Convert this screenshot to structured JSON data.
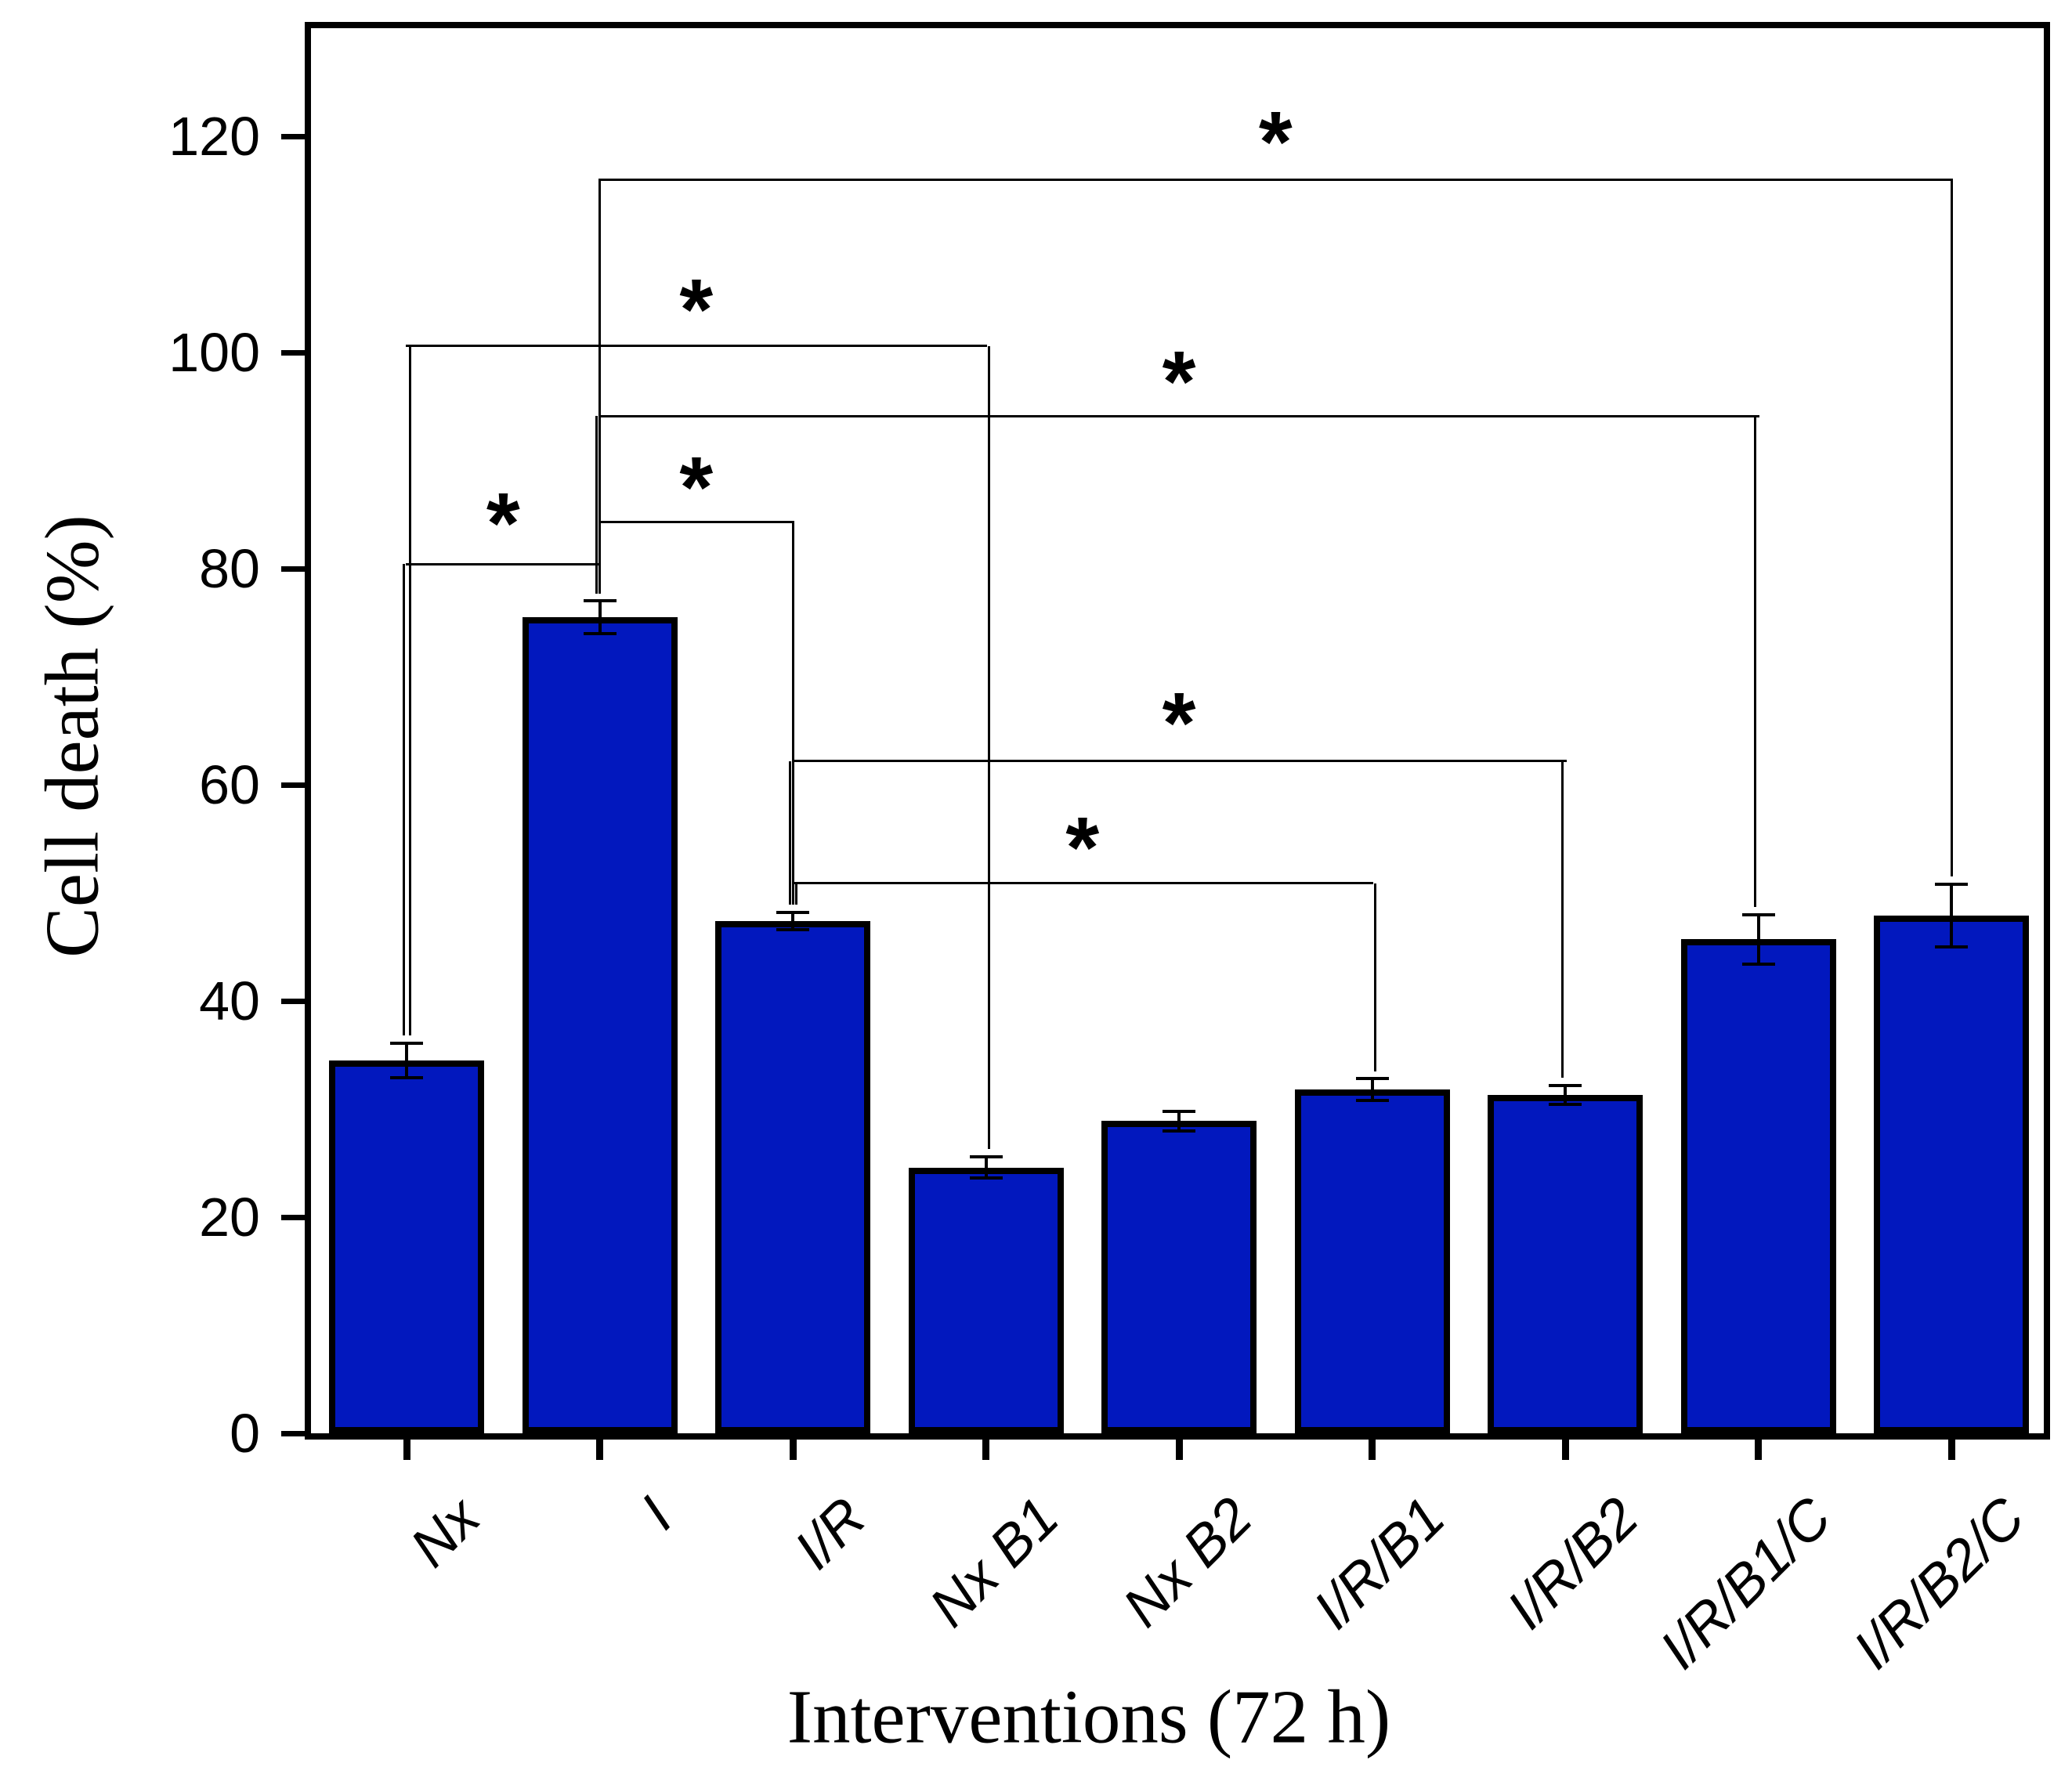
{
  "figure": {
    "background_color": "#ffffff",
    "frame_color": "#000000"
  },
  "chart_data": {
    "type": "bar",
    "title": "",
    "xlabel": "Interventions (72 h)",
    "ylabel": "Cell death (%)",
    "categories": [
      "Nx",
      "I",
      "I/R",
      "Nx B1",
      "Nx B2",
      "I/R/B1",
      "I/R/B2",
      "I/R/B1/C",
      "I/R/B2/C"
    ],
    "values": [
      34.5,
      75.5,
      47.4,
      24.6,
      28.9,
      31.8,
      31.3,
      45.7,
      47.9
    ],
    "errors": [
      1.6,
      1.5,
      0.8,
      1.0,
      0.9,
      1.0,
      0.9,
      2.3,
      2.9
    ],
    "error_bar_style": "symmetric-caps",
    "yticks": [
      0,
      20,
      40,
      60,
      80,
      100,
      120
    ],
    "ytick_labels": [
      "0",
      "20",
      "40",
      "60",
      "80",
      "100",
      "120"
    ],
    "ylim": [
      0,
      130
    ],
    "grid": false,
    "legend": null,
    "bar_color": "#0218BE",
    "bar_edge_color": "#000000",
    "significance": [
      {
        "from": "Nx",
        "to": "I",
        "from_index": 0,
        "to_index": 1,
        "line_y": 80.4,
        "star_y": 86.1,
        "label": "*"
      },
      {
        "from": "I",
        "to": "I/R",
        "from_index": 1,
        "to_index": 2,
        "line_y": 84.3,
        "star_y": 89.4,
        "label": "*"
      },
      {
        "from": "Nx",
        "to": "Nx B1",
        "from_index": 0,
        "to_index": 3,
        "line_y": 100.6,
        "star_y": 105.9,
        "label": "*"
      },
      {
        "from": "I",
        "to": "I/R/B1/C",
        "from_index": 1,
        "to_index": 7,
        "line_y": 94.1,
        "star_y": 99.2,
        "label": "*"
      },
      {
        "from": "I",
        "to": "I/R/B2/C",
        "from_index": 1,
        "to_index": 8,
        "line_y": 116.0,
        "star_y": 121.4,
        "label": "*"
      },
      {
        "from": "I/R",
        "to": "I/R/B1",
        "from_index": 2,
        "to_index": 5,
        "line_y": 50.9,
        "star_y": 56.1,
        "label": "*"
      },
      {
        "from": "I/R",
        "to": "I/R/B2",
        "from_index": 2,
        "to_index": 6,
        "line_y": 62.2,
        "star_y": 67.6,
        "label": "*"
      }
    ]
  }
}
